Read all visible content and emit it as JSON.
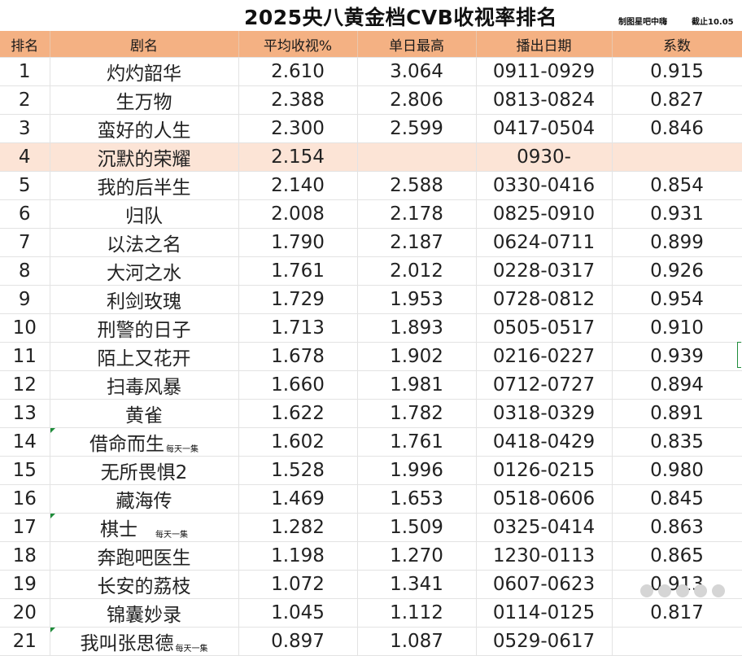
{
  "title": "2025央八黄金档CVB收视率排名",
  "credit": "制图星吧中嗨",
  "as_of": "截止10.05",
  "columns": [
    "排名",
    "剧名",
    "平均收视%",
    "单日最高",
    "播出日期",
    "系数"
  ],
  "rows": [
    {
      "rank": "1",
      "name": "灼灼韶华",
      "note": "",
      "avg": "2.610",
      "peak": "3.064",
      "dates": "0911-0929",
      "coef": "0.915"
    },
    {
      "rank": "2",
      "name": "生万物",
      "note": "",
      "avg": "2.388",
      "peak": "2.806",
      "dates": "0813-0824",
      "coef": "0.827"
    },
    {
      "rank": "3",
      "name": "蛮好的人生",
      "note": "",
      "avg": "2.300",
      "peak": "2.599",
      "dates": "0417-0504",
      "coef": "0.846"
    },
    {
      "rank": "4",
      "name": "沉默的荣耀",
      "note": "",
      "avg": "2.154",
      "peak": "",
      "dates": "0930-",
      "coef": "",
      "highlight": true
    },
    {
      "rank": "5",
      "name": "我的后半生",
      "note": "",
      "avg": "2.140",
      "peak": "2.588",
      "dates": "0330-0416",
      "coef": "0.854"
    },
    {
      "rank": "6",
      "name": "归队",
      "note": "",
      "avg": "2.008",
      "peak": "2.178",
      "dates": "0825-0910",
      "coef": "0.931"
    },
    {
      "rank": "7",
      "name": "以法之名",
      "note": "",
      "avg": "1.790",
      "peak": "2.187",
      "dates": "0624-0711",
      "coef": "0.899"
    },
    {
      "rank": "8",
      "name": "大河之水",
      "note": "",
      "avg": "1.761",
      "peak": "2.012",
      "dates": "0228-0317",
      "coef": "0.926"
    },
    {
      "rank": "9",
      "name": "利剑玫瑰",
      "note": "",
      "avg": "1.729",
      "peak": "1.953",
      "dates": "0728-0812",
      "coef": "0.954"
    },
    {
      "rank": "10",
      "name": "刑警的日子",
      "note": "",
      "avg": "1.713",
      "peak": "1.893",
      "dates": "0505-0517",
      "coef": "0.910"
    },
    {
      "rank": "11",
      "name": "陌上又花开",
      "note": "",
      "avg": "1.678",
      "peak": "1.902",
      "dates": "0216-0227",
      "coef": "0.939"
    },
    {
      "rank": "12",
      "name": "扫毒风暴",
      "note": "",
      "avg": "1.660",
      "peak": "1.981",
      "dates": "0712-0727",
      "coef": "0.894"
    },
    {
      "rank": "13",
      "name": "黄雀",
      "note": "",
      "avg": "1.622",
      "peak": "1.782",
      "dates": "0318-0329",
      "coef": "0.891"
    },
    {
      "rank": "14",
      "name": "借命而生",
      "note": "每天一集",
      "avg": "1.602",
      "peak": "1.761",
      "dates": "0418-0429",
      "coef": "0.835"
    },
    {
      "rank": "15",
      "name": "无所畏惧2",
      "note": "",
      "avg": "1.528",
      "peak": "1.996",
      "dates": "0126-0215",
      "coef": "0.980"
    },
    {
      "rank": "16",
      "name": "藏海传",
      "note": "",
      "avg": "1.469",
      "peak": "1.653",
      "dates": "0518-0606",
      "coef": "0.845"
    },
    {
      "rank": "17",
      "name": "棋士",
      "note": "每天一集",
      "avg": "1.282",
      "peak": "1.509",
      "dates": "0325-0414",
      "coef": "0.863"
    },
    {
      "rank": "18",
      "name": "奔跑吧医生",
      "note": "",
      "avg": "1.198",
      "peak": "1.270",
      "dates": "1230-0113",
      "coef": "0.865"
    },
    {
      "rank": "19",
      "name": "长安的荔枝",
      "note": "",
      "avg": "1.072",
      "peak": "1.341",
      "dates": "0607-0623",
      "coef": "0.913"
    },
    {
      "rank": "20",
      "name": "锦囊妙录",
      "note": "",
      "avg": "1.045",
      "peak": "1.112",
      "dates": "0114-0125",
      "coef": "0.817"
    },
    {
      "rank": "21",
      "name": "我叫张思德",
      "note": "每天一集",
      "avg": "0.897",
      "peak": "1.087",
      "dates": "0529-0617",
      "coef": ""
    }
  ],
  "colors": {
    "header": "#f4b183",
    "highlight_row": "#fce4d6",
    "grid": "#e3e3e3"
  }
}
